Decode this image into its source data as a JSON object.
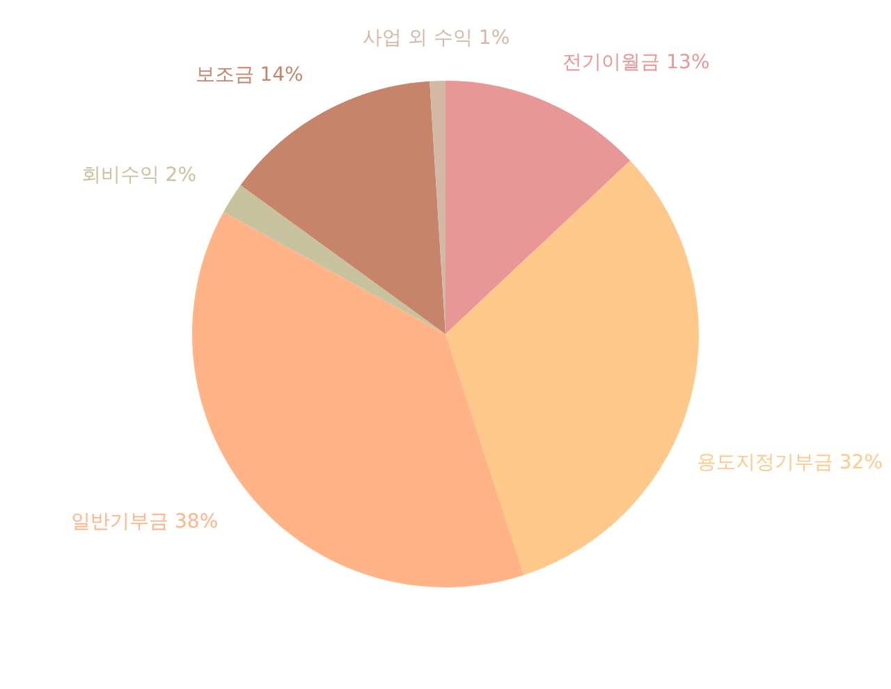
{
  "chart_data": {
    "type": "pie",
    "categories": [
      "전기이월금",
      "용도지정기부금",
      "일반기부금",
      "회비수익",
      "보조금",
      "사업 외 수익"
    ],
    "values": [
      13,
      32,
      38,
      2,
      14,
      1
    ],
    "value_labels": [
      "13%",
      "32%",
      "38%",
      "2%",
      "14%",
      "1%"
    ],
    "colors": [
      "#e89696",
      "#ffc98b",
      "#ffb387",
      "#c8c29f",
      "#c6846b",
      "#d4b8a6"
    ],
    "legend": false
  }
}
